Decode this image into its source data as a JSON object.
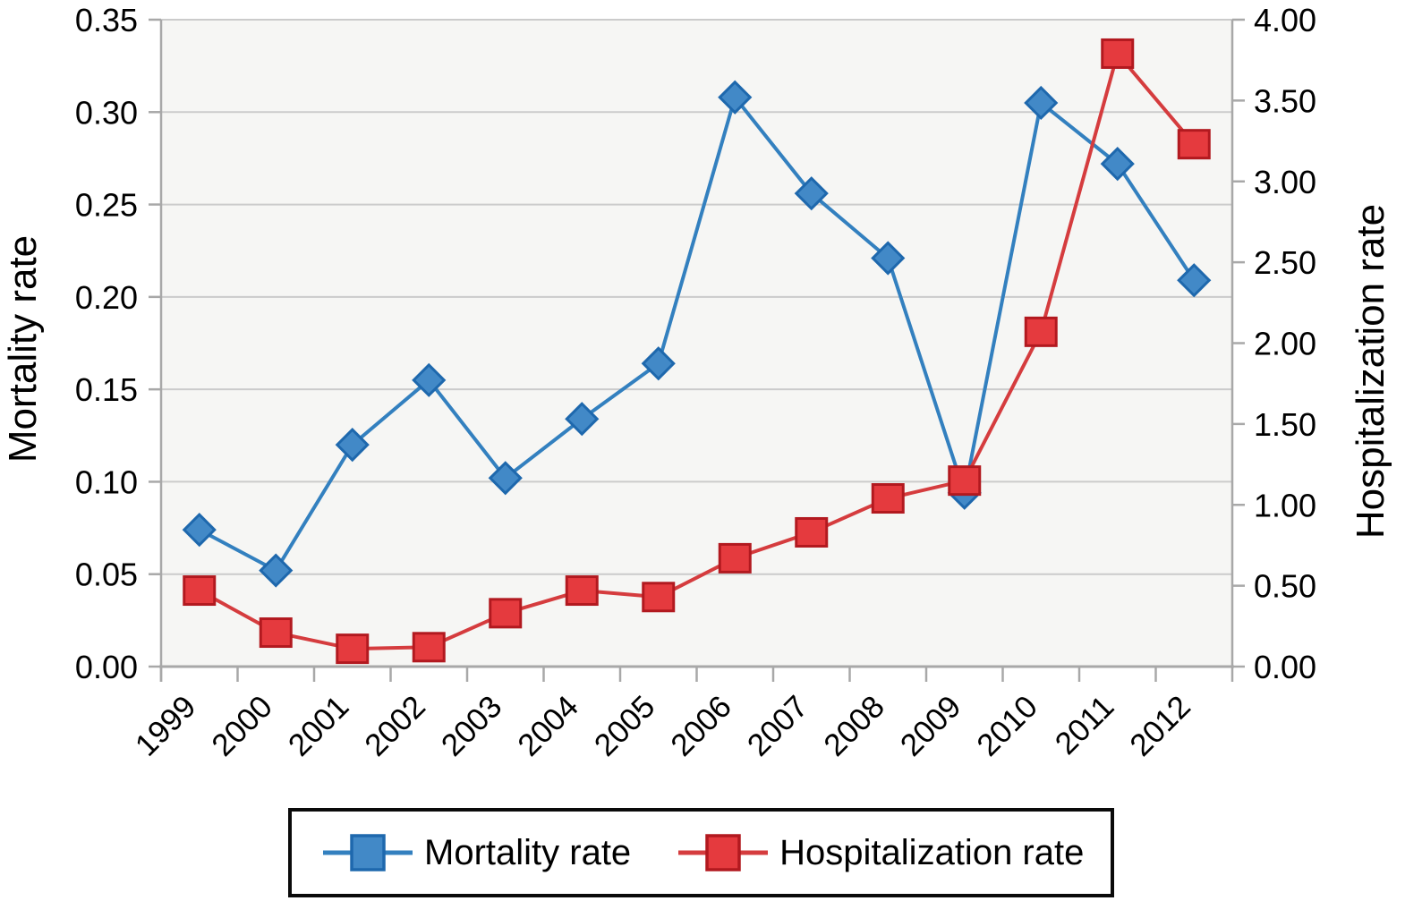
{
  "chart_data": {
    "type": "line",
    "title": "",
    "xlabel": "",
    "ylabel_left": "Mortality rate",
    "ylabel_right": "Hospitalization rate",
    "categories": [
      "1999",
      "2000",
      "2001",
      "2002",
      "2003",
      "2004",
      "2005",
      "2006",
      "2007",
      "2008",
      "2009",
      "2010",
      "2011",
      "2012"
    ],
    "series": [
      {
        "name": "Mortality rate",
        "axis": "left",
        "marker": "diamond",
        "values": [
          0.074,
          0.052,
          0.12,
          0.155,
          0.102,
          0.134,
          0.164,
          0.308,
          0.256,
          0.221,
          0.094,
          0.305,
          0.272,
          0.209
        ],
        "line_color": "#3380bf",
        "marker_fill": "#4289c7",
        "marker_stroke": "#1e68ad"
      },
      {
        "name": "Hospitalization rate",
        "axis": "right",
        "marker": "square",
        "values": [
          0.47,
          0.21,
          0.11,
          0.12,
          0.33,
          0.47,
          0.43,
          0.67,
          0.83,
          1.04,
          1.15,
          2.07,
          3.79,
          3.23
        ],
        "line_color": "#d53c3e",
        "marker_fill": "#e53a3e",
        "marker_stroke": "#b2191f"
      }
    ],
    "y_left": {
      "min": 0,
      "max": 0.35,
      "tick_step": 0.05,
      "tick_labels": [
        "0.00",
        "0.05",
        "0.10",
        "0.15",
        "0.20",
        "0.25",
        "0.30",
        "0.35"
      ]
    },
    "y_right": {
      "min": 0,
      "max": 4.0,
      "tick_step": 0.5,
      "tick_labels": [
        "0.00",
        "0.50",
        "1.00",
        "1.50",
        "2.00",
        "2.50",
        "3.00",
        "3.50",
        "4.00"
      ]
    },
    "grid": true,
    "legend_position": "bottom",
    "legend_entries": [
      "Mortality rate",
      "Hospitalization rate"
    ],
    "colors": {
      "grid": "#cbcbcb",
      "spine": "#a8a8a8",
      "plot_bg": "#f6f6f4",
      "text": "#000000"
    }
  }
}
